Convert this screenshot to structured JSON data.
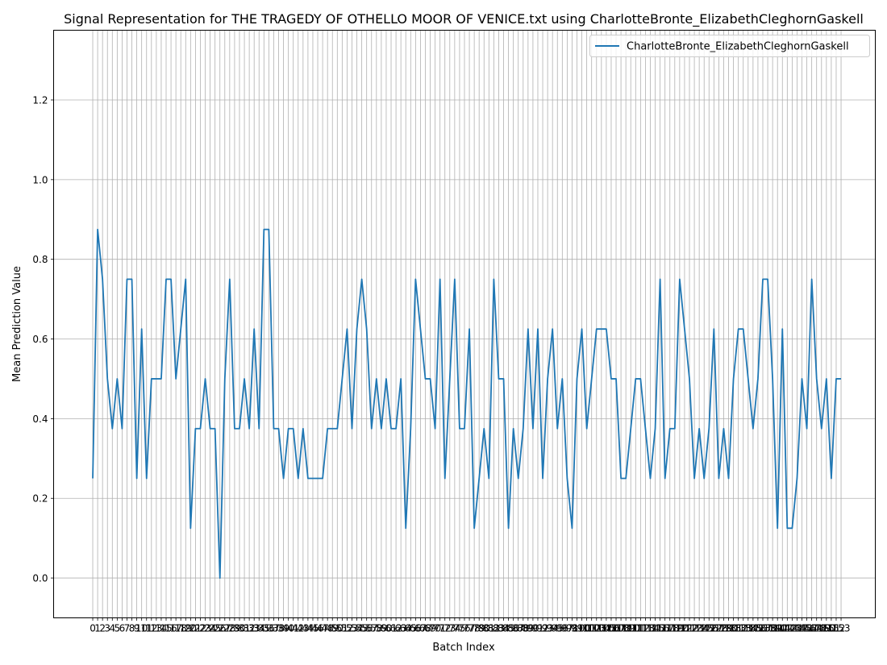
{
  "chart_data": {
    "type": "line",
    "title": "Signal Representation for THE TRAGEDY OF OTHELLO MOOR OF VENICE.txt using CharlotteBronte_ElizabethCleghornGaskell",
    "xlabel": "Batch Index",
    "ylabel": "Mean Prediction Value",
    "xlim": [
      -8.0,
      160.0
    ],
    "ylim": [
      -0.1,
      1.375
    ],
    "y_ticks": [
      0.0,
      0.2,
      0.4,
      0.6,
      0.8,
      1.0,
      1.2
    ],
    "grid": true,
    "legend_position": "top-right",
    "series": [
      {
        "name": "CharlotteBronte_ElizabethCleghornGaskell",
        "color": "#1f77b4",
        "values": [
          0.25,
          0.875,
          0.75,
          0.5,
          0.375,
          0.5,
          0.375,
          0.75,
          0.75,
          0.25,
          0.625,
          0.25,
          0.5,
          0.5,
          0.5,
          0.75,
          0.75,
          0.5,
          0.625,
          0.75,
          0.125,
          0.375,
          0.375,
          0.5,
          0.375,
          0.375,
          0.0,
          0.5,
          0.75,
          0.375,
          0.375,
          0.5,
          0.375,
          0.625,
          0.375,
          0.875,
          0.875,
          0.375,
          0.375,
          0.25,
          0.375,
          0.375,
          0.25,
          0.375,
          0.25,
          0.25,
          0.25,
          0.25,
          0.375,
          0.375,
          0.375,
          0.5,
          0.625,
          0.375,
          0.625,
          0.75,
          0.625,
          0.375,
          0.5,
          0.375,
          0.5,
          0.375,
          0.375,
          0.5,
          0.125,
          0.375,
          0.75,
          0.625,
          0.5,
          0.5,
          0.375,
          0.75,
          0.25,
          0.5,
          0.75,
          0.375,
          0.375,
          0.625,
          0.125,
          0.25,
          0.375,
          0.25,
          0.75,
          0.5,
          0.5,
          0.125,
          0.375,
          0.25,
          0.375,
          0.625,
          0.375,
          0.625,
          0.25,
          0.5,
          0.625,
          0.375,
          0.5,
          0.25,
          0.125,
          0.5,
          0.625,
          0.375,
          0.5,
          0.625,
          0.625,
          0.625,
          0.5,
          0.5,
          0.25,
          0.25,
          0.375,
          0.5,
          0.5,
          0.375,
          0.25,
          0.375,
          0.75,
          0.25,
          0.375,
          0.375,
          0.75,
          0.625,
          0.5,
          0.25,
          0.375,
          0.25,
          0.375,
          0.625,
          0.25,
          0.375,
          0.25,
          0.5,
          0.625,
          0.625,
          0.5,
          0.375,
          0.5,
          0.75,
          0.75,
          0.5,
          0.125,
          0.625,
          0.125,
          0.125,
          0.25,
          0.5,
          0.375,
          0.75,
          0.5,
          0.375,
          0.5,
          0.25,
          0.5,
          0.5
        ]
      }
    ]
  }
}
